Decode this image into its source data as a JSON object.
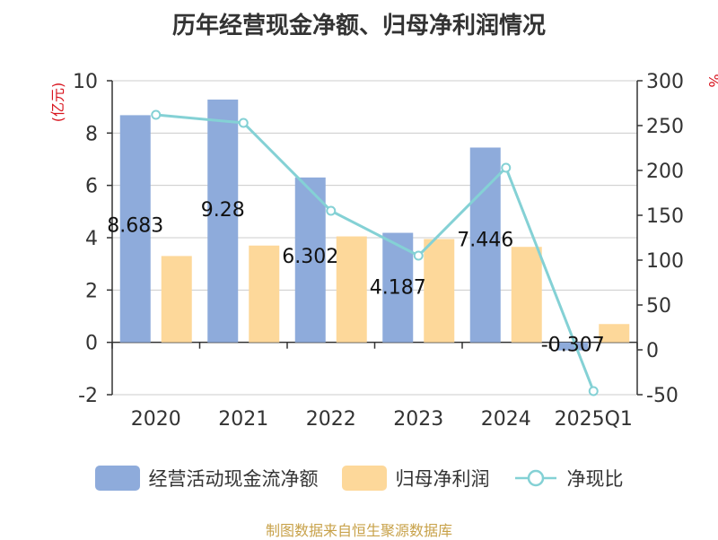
{
  "title": "历年经营现金净额、归母净利润情况",
  "footer": "制图数据来自恒生聚源数据库",
  "colors": {
    "bar1": "#8eabdb",
    "bar2": "#fdd89a",
    "line": "#84d1d5",
    "axis": "#333333",
    "grid": "#cccccc",
    "unit": "#d8141e"
  },
  "chart_data": {
    "type": "bar",
    "title": "历年经营现金净额、归母净利润情况",
    "categories": [
      "2020",
      "2021",
      "2022",
      "2023",
      "2024",
      "2025Q1"
    ],
    "y_left": {
      "label": "(亿元)",
      "range": [
        -2,
        10
      ],
      "ticks": [
        "-2",
        "0",
        "2",
        "4",
        "6",
        "8",
        "10"
      ]
    },
    "y_right": {
      "label": "%",
      "range": [
        -50,
        300
      ],
      "ticks": [
        "-50",
        "0",
        "50",
        "100",
        "150",
        "200",
        "250",
        "300"
      ]
    },
    "grid": true,
    "legend_position": "bottom",
    "series": [
      {
        "name": "经营活动现金流净额",
        "type": "bar",
        "axis": "left",
        "values": [
          8.683,
          9.28,
          6.302,
          4.187,
          7.446,
          -0.307
        ],
        "labels": [
          "8.683",
          "9.28",
          "6.302",
          "4.187",
          "7.446",
          "-0.307"
        ]
      },
      {
        "name": "归母净利润",
        "type": "bar",
        "axis": "left",
        "values": [
          3.3,
          3.7,
          4.05,
          3.95,
          3.65,
          0.7
        ]
      },
      {
        "name": "净现比",
        "type": "line",
        "axis": "right",
        "values": [
          262,
          253,
          155,
          105,
          203,
          -46
        ]
      }
    ]
  }
}
